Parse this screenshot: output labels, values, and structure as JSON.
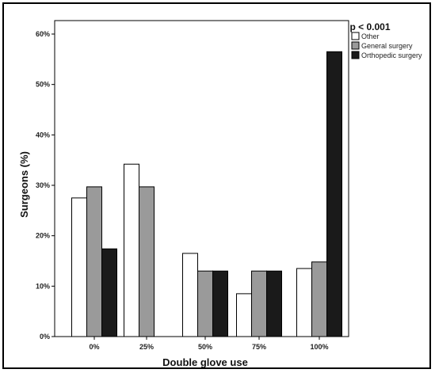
{
  "chart_data": {
    "type": "bar",
    "categories": [
      "0%",
      "25%",
      "50%",
      "75%",
      "100%"
    ],
    "series": [
      {
        "name": "Other",
        "values": [
          27.5,
          34.2,
          16.5,
          8.5,
          13.5
        ],
        "color": "#ffffff"
      },
      {
        "name": "General surgery",
        "values": [
          29.7,
          29.7,
          13.0,
          13.0,
          14.8
        ],
        "color": "#9a9a9a"
      },
      {
        "name": "Orthopedic surgery",
        "values": [
          17.4,
          0,
          13.0,
          13.0,
          56.5
        ],
        "color": "#1a1a1a"
      }
    ],
    "title": "p < 0.001",
    "xlabel": "Double glove use",
    "ylabel": "Surgeons (%)",
    "ylim": [
      0,
      60
    ],
    "yticks": [
      0,
      10,
      20,
      30,
      40,
      50,
      60
    ],
    "ytick_labels": [
      "0%",
      "10%",
      "20%",
      "30%",
      "40%",
      "50%",
      "60%"
    ],
    "grid": false,
    "legend_position": "top-right"
  }
}
